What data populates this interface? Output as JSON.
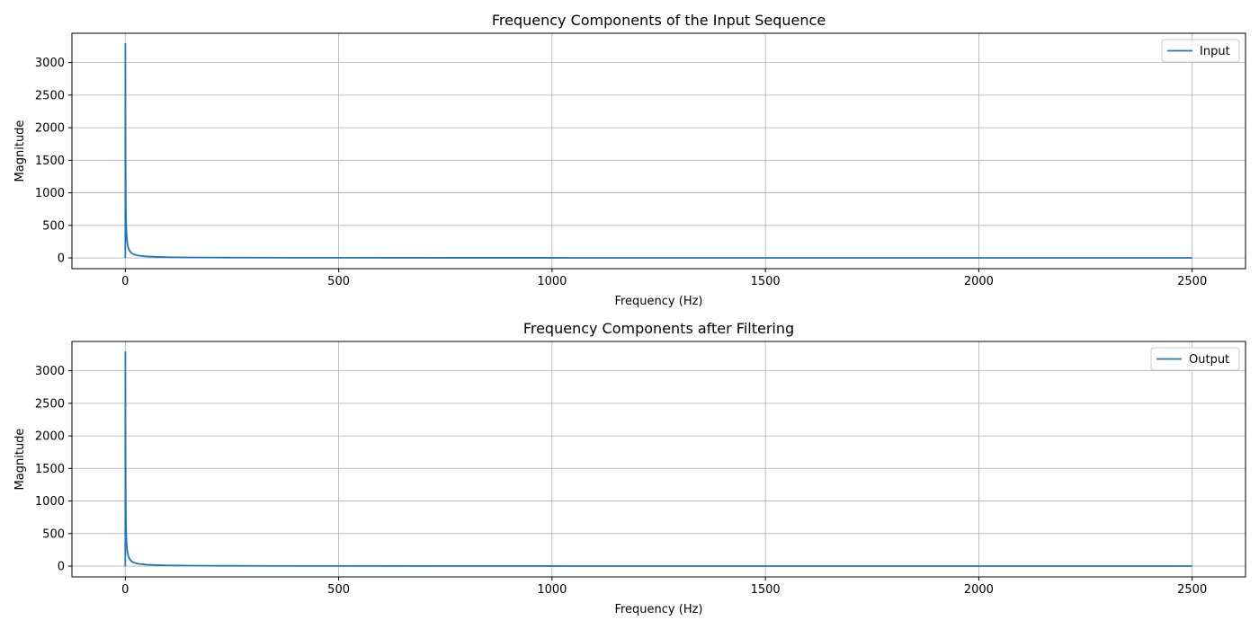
{
  "chart_data": [
    {
      "type": "line",
      "title": "Frequency Components of the Input Sequence",
      "xlabel": "Frequency (Hz)",
      "ylabel": "Magnitude",
      "xlim": [
        -125,
        2625
      ],
      "ylim": [
        -165,
        3450
      ],
      "xticks": [
        0,
        500,
        1000,
        1500,
        2000,
        2500
      ],
      "yticks": [
        0,
        500,
        1000,
        1500,
        2000,
        2500,
        3000
      ],
      "grid": true,
      "legend": "top-right",
      "series": [
        {
          "name": "Input",
          "color": "#1f77b4",
          "x": [
            0,
            0.2,
            0.5,
            1,
            1.5,
            2,
            2.5,
            3,
            4,
            5,
            7,
            10,
            15,
            20,
            30,
            50,
            75,
            100,
            150,
            200,
            300,
            400,
            500,
            750,
            1000,
            1250,
            1500,
            1750,
            2000,
            2250,
            2500
          ],
          "y": [
            0,
            3290,
            2200,
            1100,
            730,
            550,
            440,
            366,
            275,
            220,
            157,
            110,
            73,
            55,
            37,
            22,
            15,
            11,
            7.3,
            5.5,
            3.7,
            2.8,
            2.2,
            1.5,
            1.1,
            0.9,
            0.7,
            0.6,
            0.55,
            0.5,
            0.44
          ]
        }
      ]
    },
    {
      "type": "line",
      "title": "Frequency Components after Filtering",
      "xlabel": "Frequency (Hz)",
      "ylabel": "Magnitude",
      "xlim": [
        -125,
        2625
      ],
      "ylim": [
        -165,
        3450
      ],
      "xticks": [
        0,
        500,
        1000,
        1500,
        2000,
        2500
      ],
      "yticks": [
        0,
        500,
        1000,
        1500,
        2000,
        2500,
        3000
      ],
      "grid": true,
      "legend": "top-right",
      "series": [
        {
          "name": "Output",
          "color": "#1f77b4",
          "x": [
            0,
            0.2,
            0.5,
            1,
            1.5,
            2,
            2.5,
            3,
            4,
            5,
            7,
            10,
            15,
            20,
            30,
            50,
            75,
            100,
            150,
            200,
            300,
            400,
            500,
            750,
            1000,
            1250,
            1500,
            1750,
            2000,
            2250,
            2500
          ],
          "y": [
            0,
            3290,
            2200,
            1100,
            730,
            550,
            440,
            366,
            275,
            220,
            157,
            110,
            73,
            55,
            37,
            22,
            15,
            11,
            7.3,
            5.5,
            3.7,
            2.8,
            2.2,
            1.5,
            1.1,
            0.9,
            0.7,
            0.6,
            0.55,
            0.5,
            0.44
          ]
        }
      ]
    }
  ]
}
